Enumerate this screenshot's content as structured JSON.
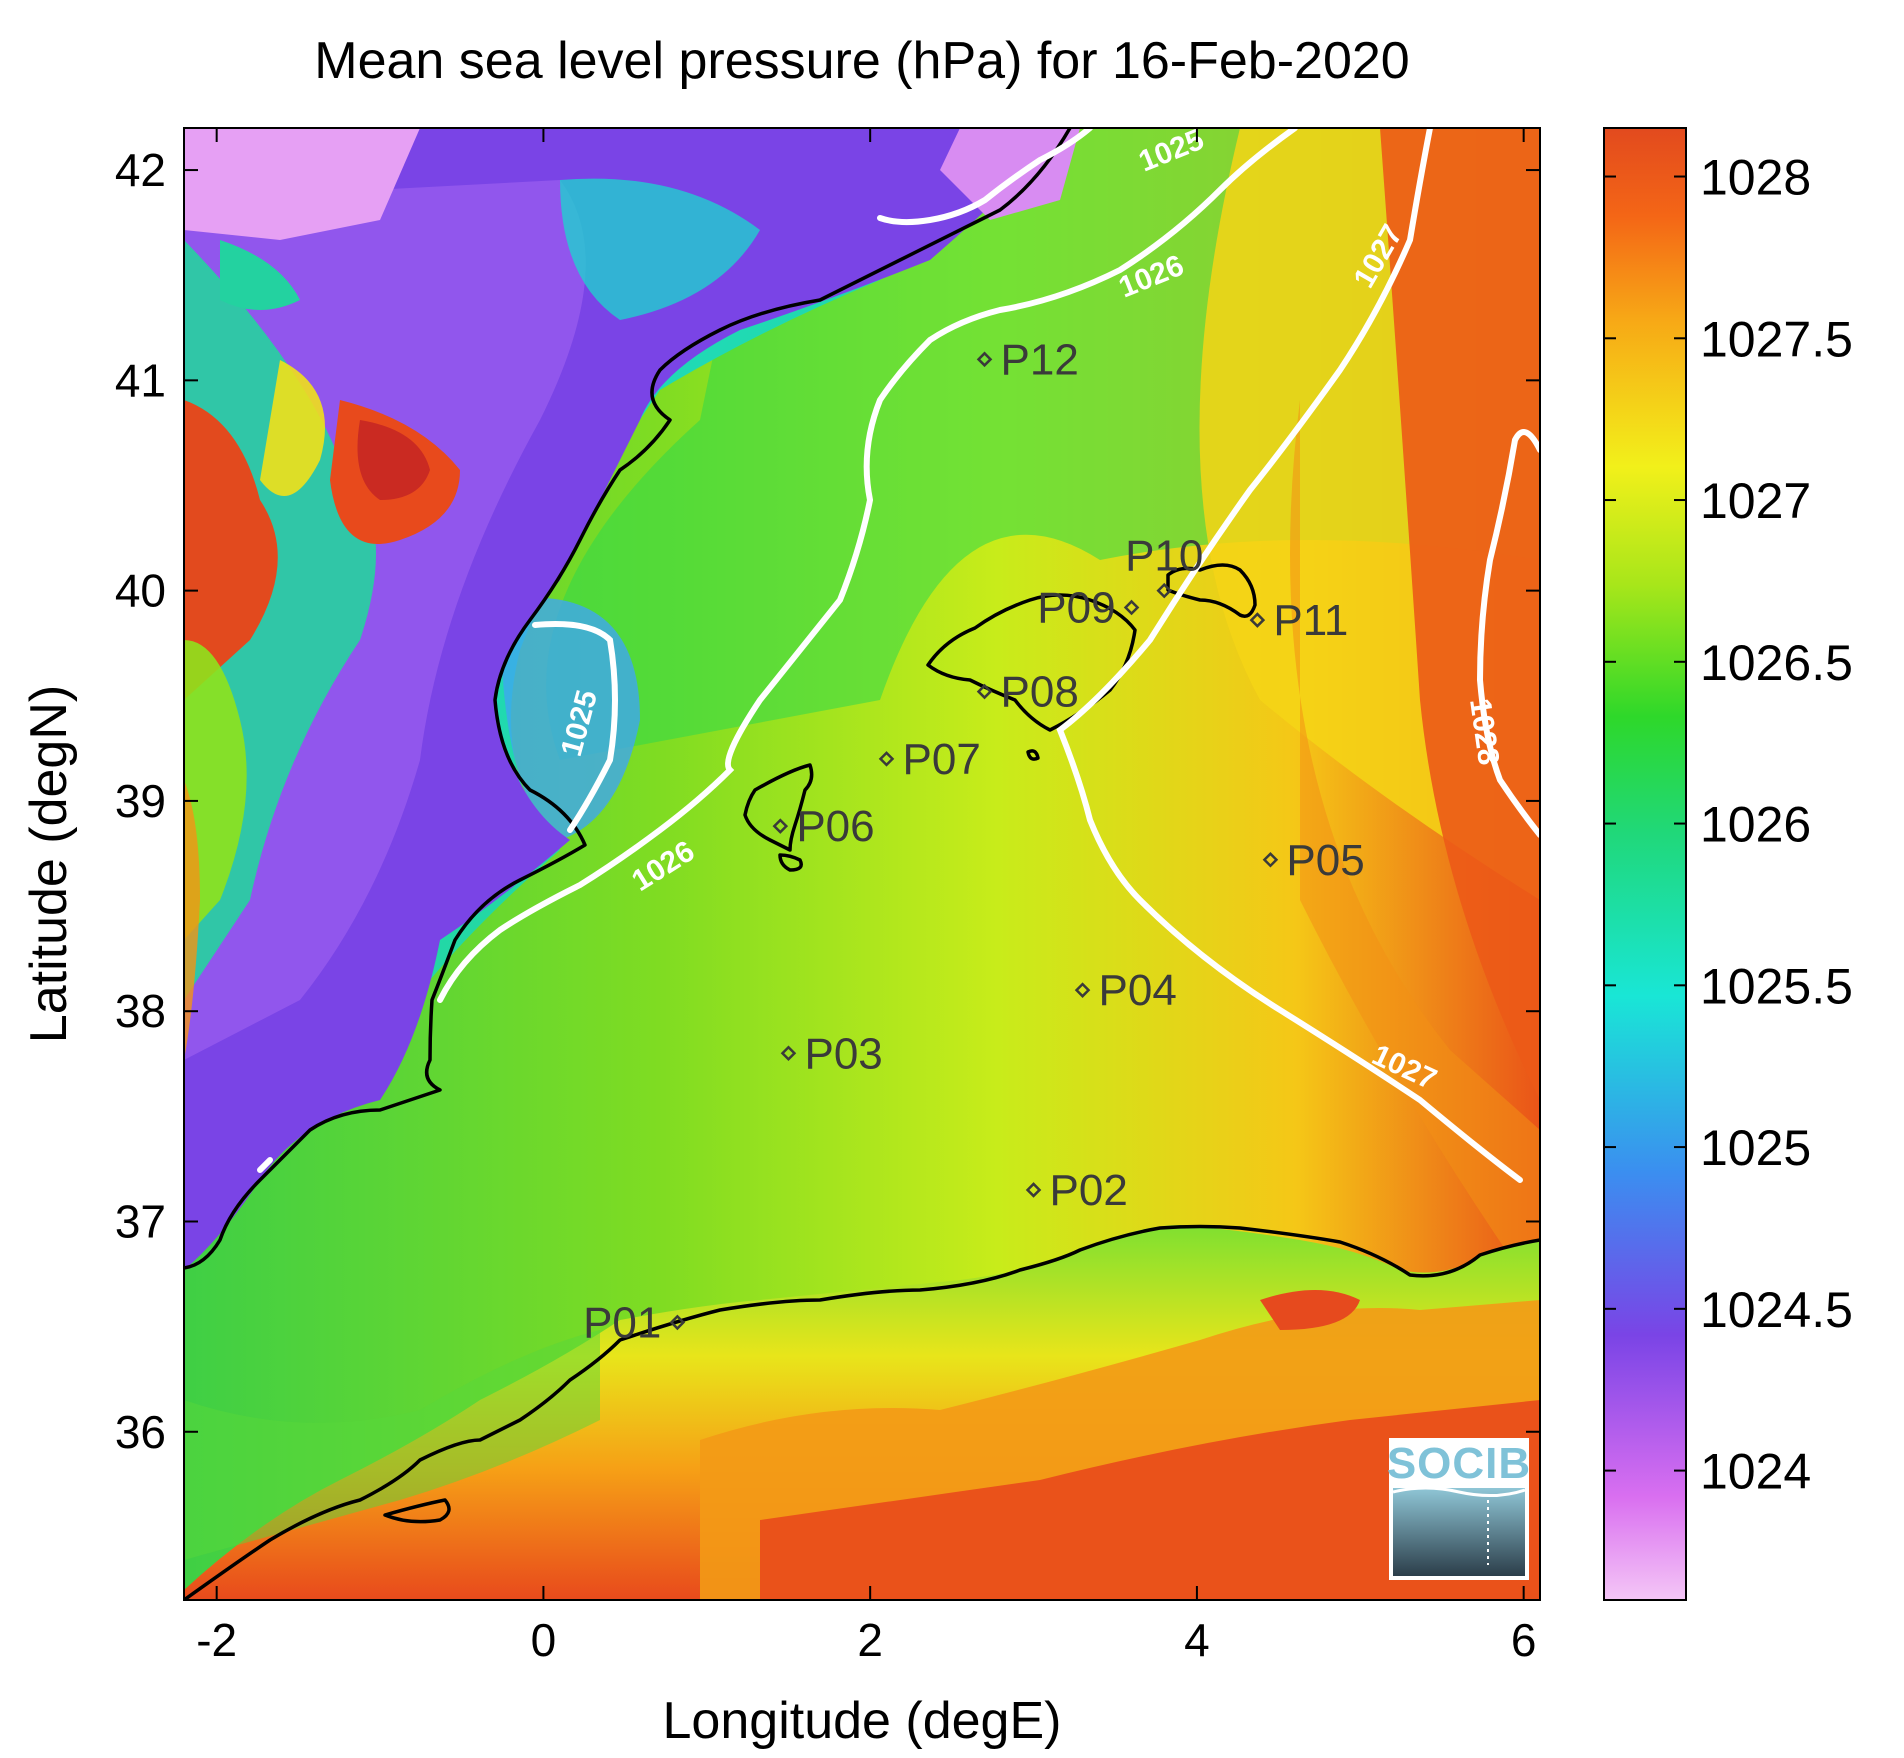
{
  "title": "Mean sea level pressure (hPa) for 16-Feb-2020",
  "xlabel": "Longitude (degE)",
  "ylabel": "Latitude (degN)",
  "xlim": [
    -2.2,
    6.1
  ],
  "ylim": [
    35.2,
    42.2
  ],
  "xticks": [
    -2,
    0,
    2,
    4,
    6
  ],
  "yticks": [
    36,
    37,
    38,
    39,
    40,
    41,
    42
  ],
  "colorbar": {
    "min": 1023.6,
    "max": 1028.15,
    "ticks": [
      "1024",
      "1024.5",
      "1025",
      "1025.5",
      "1026",
      "1026.5",
      "1027",
      "1027.5",
      "1028"
    ]
  },
  "stations": [
    {
      "label": "P01",
      "lon": 0.82,
      "lat": 36.52,
      "side": "left"
    },
    {
      "label": "P02",
      "lon": 3.0,
      "lat": 37.15,
      "side": "right"
    },
    {
      "label": "P03",
      "lon": 1.5,
      "lat": 37.8,
      "side": "right"
    },
    {
      "label": "P04",
      "lon": 3.3,
      "lat": 38.1,
      "side": "right"
    },
    {
      "label": "P05",
      "lon": 4.45,
      "lat": 38.72,
      "side": "right"
    },
    {
      "label": "P06",
      "lon": 1.45,
      "lat": 38.88,
      "side": "right"
    },
    {
      "label": "P07",
      "lon": 2.1,
      "lat": 39.2,
      "side": "right"
    },
    {
      "label": "P08",
      "lon": 2.7,
      "lat": 39.52,
      "side": "right"
    },
    {
      "label": "P09",
      "lon": 3.6,
      "lat": 39.92,
      "side": "left"
    },
    {
      "label": "P10",
      "lon": 3.8,
      "lat": 40.0,
      "side": "top"
    },
    {
      "label": "P11",
      "lon": 4.37,
      "lat": 39.86,
      "side": "right"
    },
    {
      "label": "P12",
      "lon": 2.7,
      "lat": 41.1,
      "side": "right"
    }
  ],
  "contour_labels": [
    "1025",
    "1025",
    "1026",
    "1026",
    "1027",
    "1027",
    "1028"
  ],
  "logo": "SOCIB"
}
